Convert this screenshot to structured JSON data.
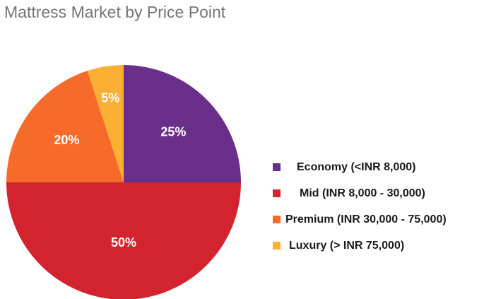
{
  "chart_data": {
    "type": "pie",
    "title": "Mattress Market by Price Point",
    "slices": [
      {
        "name": "Economy (<INR 8,000)",
        "value": 25,
        "label": "25%",
        "color": "#6a2f8a"
      },
      {
        "name": "Mid (INR 8,000 - 30,000)",
        "value": 50,
        "label": "50%",
        "color": "#d3232f"
      },
      {
        "name": "Premium (INR 30,000 - 75,000)",
        "value": 20,
        "label": "20%",
        "color": "#f66b2a"
      },
      {
        "name": "Luxury (> INR 75,000)",
        "value": 5,
        "label": "5%",
        "color": "#fbb034"
      }
    ],
    "legend_position": "right",
    "start_angle": "top",
    "direction": "clockwise"
  }
}
